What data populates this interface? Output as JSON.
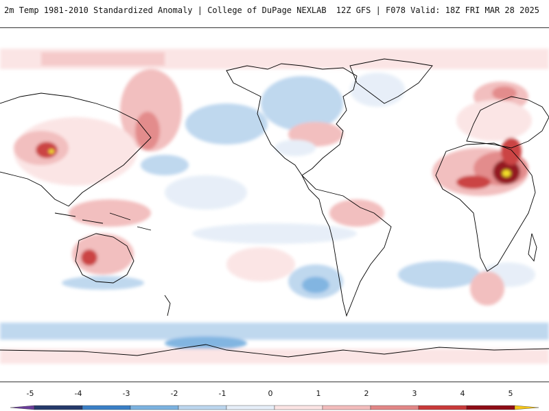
{
  "header": {
    "title": "2m Temp 1981-2010 Standardized Anomaly | College of DuPage NEXLAB",
    "run_info": "12Z GFS | F078 Valid: 18Z FRI MAR 28 2025"
  },
  "legend": {
    "ticks": [
      "-5",
      "-4",
      "-3",
      "-2",
      "-1",
      "0",
      "1",
      "2",
      "3",
      "4",
      "5"
    ],
    "bins": [
      {
        "from": -5.5,
        "to": -5,
        "color": "#6a3d9a"
      },
      {
        "from": -5,
        "to": -4,
        "color": "#253a6b"
      },
      {
        "from": -4,
        "to": -3,
        "color": "#3a7fc6"
      },
      {
        "from": -3,
        "to": -2,
        "color": "#7bb2e0"
      },
      {
        "from": -2,
        "to": -1,
        "color": "#bcd6ee"
      },
      {
        "from": -1,
        "to": 0,
        "color": "#e6eef8"
      },
      {
        "from": 0,
        "to": 1,
        "color": "#fbe4e4"
      },
      {
        "from": 1,
        "to": 2,
        "color": "#f2bcbc"
      },
      {
        "from": 2,
        "to": 3,
        "color": "#e28686"
      },
      {
        "from": 3,
        "to": 4,
        "color": "#c93a3a"
      },
      {
        "from": 4,
        "to": 5,
        "color": "#8e0c16"
      },
      {
        "from": 5,
        "to": 5.5,
        "color": "#f5c518"
      }
    ]
  },
  "map": {
    "projection": "equirectangular",
    "land_outline_color": "#000000",
    "anomaly_colors": {
      "cold_strong": "#7bb2e0",
      "cold": "#bcd6ee",
      "cold_weak": "#e6eef8",
      "warm_weak": "#fbe4e4",
      "warm": "#f2bcbc",
      "warm_strong": "#e28686",
      "hot": "#c93a3a",
      "extreme": "#8e0c16",
      "peak": "#f5e21a"
    }
  }
}
